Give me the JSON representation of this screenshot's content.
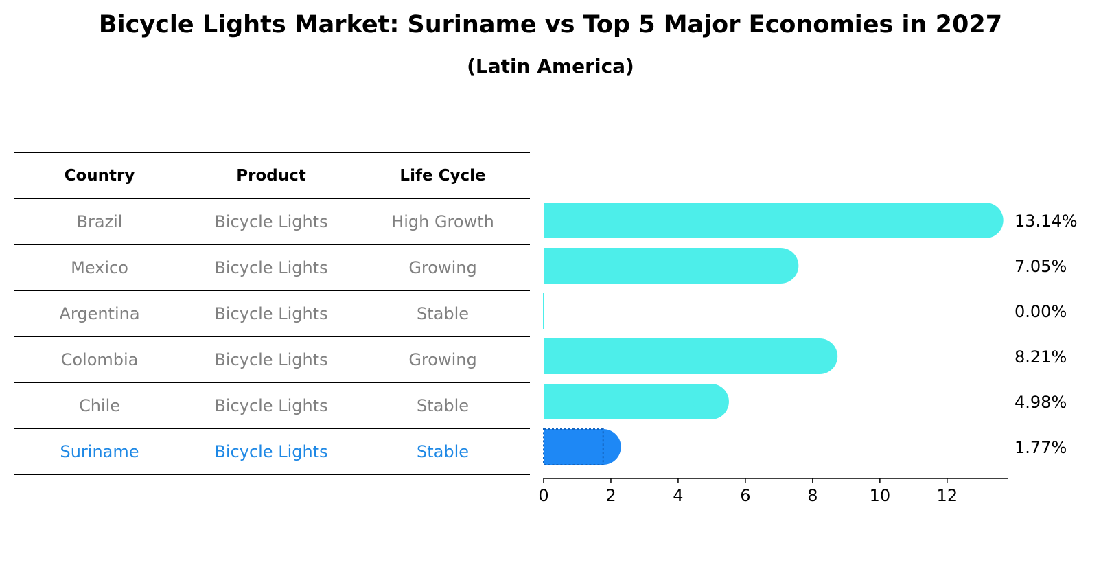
{
  "chart_data": {
    "type": "bar",
    "orientation": "horizontal",
    "title": "Bicycle Lights Market: Suriname vs Top 5 Major Economies in 2027",
    "subtitle": "(Latin America)",
    "columns": [
      "Country",
      "Product",
      "Life Cycle"
    ],
    "rows": [
      {
        "country": "Brazil",
        "product": "Bicycle Lights",
        "life_cycle": "High Growth",
        "value": 13.14,
        "label": "13.14%"
      },
      {
        "country": "Mexico",
        "product": "Bicycle Lights",
        "life_cycle": "Growing",
        "value": 7.05,
        "label": "7.05%"
      },
      {
        "country": "Argentina",
        "product": "Bicycle Lights",
        "life_cycle": "Stable",
        "value": 0.0,
        "label": "0.00%"
      },
      {
        "country": "Colombia",
        "product": "Bicycle Lights",
        "life_cycle": "Growing",
        "value": 8.21,
        "label": "8.21%"
      },
      {
        "country": "Chile",
        "product": "Bicycle Lights",
        "life_cycle": "Stable",
        "value": 4.98,
        "label": "4.98%"
      },
      {
        "country": "Suriname",
        "product": "Bicycle Lights",
        "life_cycle": "Stable",
        "value": 1.77,
        "label": "1.77%"
      }
    ],
    "highlight": "Suriname",
    "xlim": [
      0,
      13.8
    ],
    "xticks": [
      0,
      2,
      4,
      6,
      8,
      10,
      12
    ],
    "colors": {
      "bar": "#4deeea",
      "highlight": "#1e88f5",
      "text_muted": "#808080",
      "text_highlight": "#1e88e5"
    }
  }
}
